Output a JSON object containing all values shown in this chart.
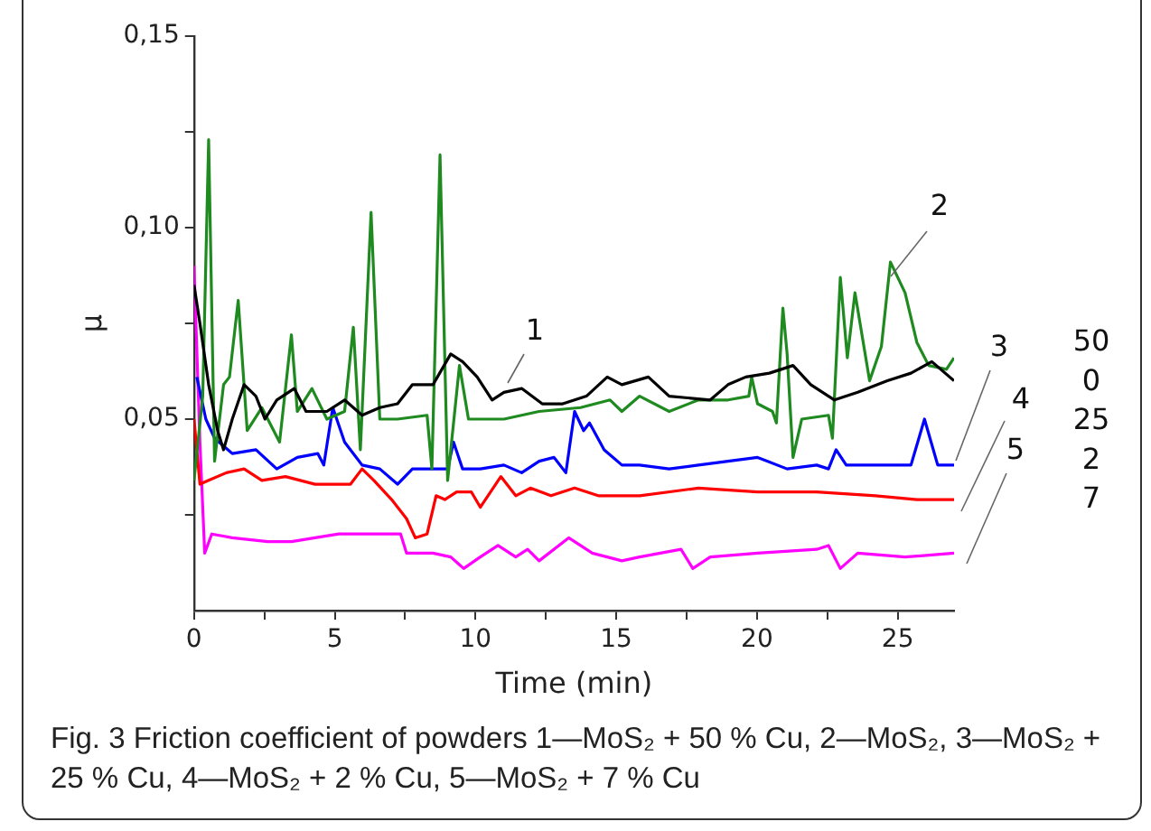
{
  "chart_data": {
    "type": "line",
    "xlabel": "Time (min)",
    "ylabel": "μ",
    "xlim": [
      0,
      27
    ],
    "xticks": [
      0,
      {
        "value": 2.5,
        "label": null
      },
      5,
      {
        "value": 7.5,
        "label": null
      },
      10,
      {
        "value": 12.5,
        "label": null
      },
      15,
      {
        "value": 17.5,
        "label": null
      },
      20,
      {
        "value": 22.5,
        "label": null
      },
      25
    ],
    "ylim": [
      0,
      0.15
    ],
    "yticks": [
      {
        "value": 0.025,
        "label": null
      },
      {
        "value": 0.05,
        "label": "0,05"
      },
      {
        "value": 0.075,
        "label": null
      },
      {
        "value": 0.1,
        "label": "0,10"
      },
      {
        "value": 0.125,
        "label": null
      },
      {
        "value": 0.15,
        "label": "0,15"
      }
    ],
    "grid": false,
    "legend": false,
    "marker": "none",
    "line_style": "solid",
    "series": [
      {
        "name": "1",
        "color": "#000000",
        "x": [
          0,
          0.21,
          0.52,
          0.84,
          1.05,
          1.36,
          1.78,
          2.2,
          2.52,
          2.94,
          3.56,
          3.98,
          4.72,
          5.35,
          5.97,
          6.6,
          7.23,
          7.76,
          8.49,
          9.12,
          9.54,
          10.06,
          10.59,
          11.01,
          11.64,
          12.37,
          13.1,
          13.94,
          14.68,
          15.2,
          16.14,
          16.88,
          18.34,
          18.97,
          19.6,
          20.44,
          21.28,
          21.91,
          22.75,
          23.58,
          24.63,
          25.47,
          26.21,
          27
        ],
        "values": [
          0.085,
          0.075,
          0.059,
          0.047,
          0.042,
          0.05,
          0.059,
          0.056,
          0.05,
          0.055,
          0.058,
          0.052,
          0.052,
          0.055,
          0.051,
          0.053,
          0.054,
          0.059,
          0.059,
          0.067,
          0.065,
          0.061,
          0.055,
          0.057,
          0.058,
          0.054,
          0.054,
          0.056,
          0.061,
          0.059,
          0.061,
          0.056,
          0.055,
          0.059,
          0.061,
          0.062,
          0.064,
          0.059,
          0.055,
          0.057,
          0.06,
          0.062,
          0.065,
          0.06
        ]
      },
      {
        "name": "2",
        "color": "#1f8a1f",
        "x": [
          0,
          0.31,
          0.52,
          0.73,
          1.05,
          1.26,
          1.57,
          1.89,
          2.41,
          3.04,
          3.46,
          3.67,
          4.19,
          4.72,
          5.35,
          5.66,
          5.91,
          6.29,
          6.6,
          7.23,
          8.28,
          8.45,
          8.74,
          9.01,
          9.43,
          9.75,
          11.01,
          12.26,
          13.73,
          14.78,
          15.2,
          15.83,
          16.88,
          17.92,
          18.97,
          19.71,
          19.81,
          20.02,
          20.55,
          20.69,
          20.92,
          21.07,
          21.28,
          21.59,
          22.54,
          22.68,
          22.96,
          23.21,
          23.48,
          24.0,
          24.42,
          24.74,
          25.26,
          25.68,
          26.1,
          26.73,
          27
        ],
        "values": [
          0.034,
          0.056,
          0.123,
          0.039,
          0.059,
          0.061,
          0.081,
          0.047,
          0.053,
          0.044,
          0.072,
          0.052,
          0.058,
          0.05,
          0.052,
          0.074,
          0.042,
          0.104,
          0.05,
          0.05,
          0.051,
          0.037,
          0.119,
          0.034,
          0.064,
          0.05,
          0.05,
          0.052,
          0.053,
          0.055,
          0.052,
          0.056,
          0.052,
          0.055,
          0.055,
          0.056,
          0.061,
          0.054,
          0.052,
          0.049,
          0.079,
          0.067,
          0.04,
          0.05,
          0.051,
          0.045,
          0.087,
          0.066,
          0.083,
          0.06,
          0.069,
          0.091,
          0.083,
          0.07,
          0.064,
          0.063,
          0.066
        ]
      },
      {
        "name": "3",
        "color": "#0000ff",
        "x": [
          0.1,
          0.42,
          0.73,
          1.36,
          2.2,
          2.94,
          3.67,
          4.4,
          4.61,
          4.93,
          5.35,
          5.97,
          6.6,
          7.23,
          7.76,
          8.49,
          9.01,
          9.22,
          9.54,
          10.17,
          11.01,
          11.64,
          12.26,
          12.79,
          13.21,
          13.52,
          13.84,
          14.05,
          14.57,
          15.2,
          15.83,
          16.88,
          17.92,
          18.97,
          20.02,
          21.07,
          22.12,
          22.54,
          22.81,
          23.17,
          24.21,
          25.47,
          25.95,
          26.42,
          27
        ],
        "values": [
          0.061,
          0.05,
          0.045,
          0.041,
          0.042,
          0.037,
          0.04,
          0.041,
          0.038,
          0.053,
          0.044,
          0.038,
          0.037,
          0.033,
          0.037,
          0.037,
          0.037,
          0.044,
          0.037,
          0.037,
          0.038,
          0.036,
          0.039,
          0.04,
          0.036,
          0.052,
          0.047,
          0.049,
          0.042,
          0.038,
          0.038,
          0.037,
          0.038,
          0.039,
          0.04,
          0.037,
          0.038,
          0.037,
          0.042,
          0.038,
          0.038,
          0.038,
          0.05,
          0.038,
          0.038
        ]
      },
      {
        "name": "4",
        "color": "#ff0000",
        "x": [
          0,
          0.21,
          0.52,
          1.15,
          1.78,
          2.41,
          3.25,
          4.3,
          5.56,
          5.97,
          6.39,
          7.02,
          7.55,
          7.86,
          8.28,
          8.6,
          8.91,
          9.33,
          9.85,
          10.17,
          10.9,
          11.43,
          11.95,
          12.68,
          13.52,
          14.36,
          15.2,
          15.83,
          17.92,
          20.02,
          22.12,
          24.21,
          25.68,
          27
        ],
        "values": [
          0.05,
          0.033,
          0.034,
          0.036,
          0.037,
          0.034,
          0.035,
          0.033,
          0.033,
          0.037,
          0.034,
          0.029,
          0.024,
          0.019,
          0.02,
          0.03,
          0.029,
          0.031,
          0.031,
          0.027,
          0.035,
          0.03,
          0.032,
          0.03,
          0.032,
          0.03,
          0.03,
          0.03,
          0.032,
          0.031,
          0.031,
          0.03,
          0.029,
          0.029
        ]
      },
      {
        "name": "5",
        "color": "#ff00ff",
        "x": [
          0,
          0.21,
          0.38,
          0.63,
          1.36,
          2.62,
          3.46,
          4.3,
          5.14,
          6.18,
          7.34,
          7.55,
          8.49,
          9.12,
          9.58,
          10.17,
          10.8,
          11.43,
          11.85,
          12.26,
          13.31,
          14.15,
          15.2,
          15.83,
          17.3,
          17.72,
          18.34,
          20.02,
          22.12,
          22.54,
          22.96,
          23.58,
          25.26,
          27
        ],
        "values": [
          0.09,
          0.044,
          0.015,
          0.02,
          0.019,
          0.018,
          0.018,
          0.019,
          0.02,
          0.02,
          0.02,
          0.015,
          0.015,
          0.014,
          0.011,
          0.014,
          0.017,
          0.014,
          0.016,
          0.013,
          0.019,
          0.015,
          0.013,
          0.014,
          0.016,
          0.011,
          0.014,
          0.015,
          0.016,
          0.017,
          0.011,
          0.015,
          0.014,
          0.015
        ]
      }
    ],
    "annotations": [
      "50",
      "0",
      "25",
      "2",
      "7",
      "Fig. 3  Friction coefficient of powders 1—MoS₂ + 50 % Cu, 2—MoS₂, 3—MoS₂ + 25 % Cu, 4—MoS₂ + 2 % Cu, 5—MoS₂ + 7 % Cu"
    ]
  }
}
